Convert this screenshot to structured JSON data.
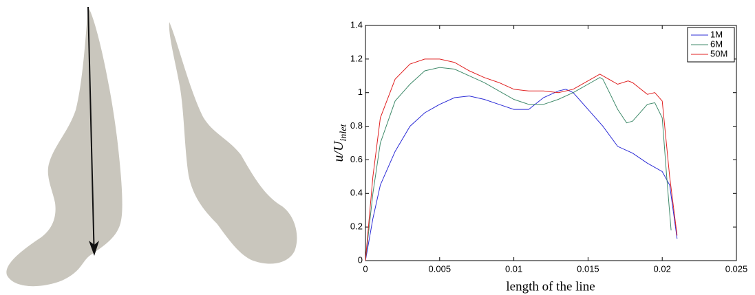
{
  "chart_data": {
    "type": "line",
    "xlabel": "length of the line",
    "ylabel": {
      "main": "u/U",
      "sub": "inlet"
    },
    "xlim": [
      0,
      0.025
    ],
    "ylim": [
      0,
      1.4
    ],
    "xticks": [
      0,
      0.005,
      0.01,
      0.015,
      0.02,
      0.025
    ],
    "yticks": [
      0,
      0.2,
      0.4,
      0.6,
      0.8,
      1,
      1.2,
      1.4
    ],
    "legend": "top-right",
    "series": [
      {
        "name": "1M",
        "color": "#2b2bd6",
        "x": [
          0,
          0.0005,
          0.001,
          0.002,
          0.003,
          0.004,
          0.005,
          0.006,
          0.007,
          0.008,
          0.009,
          0.01,
          0.011,
          0.012,
          0.013,
          0.0135,
          0.014,
          0.015,
          0.016,
          0.017,
          0.018,
          0.019,
          0.02,
          0.0205,
          0.021
        ],
        "values": [
          0,
          0.25,
          0.45,
          0.65,
          0.8,
          0.88,
          0.93,
          0.97,
          0.98,
          0.96,
          0.93,
          0.9,
          0.9,
          0.97,
          1.01,
          1.02,
          1.0,
          0.9,
          0.8,
          0.68,
          0.64,
          0.58,
          0.53,
          0.45,
          0.13
        ]
      },
      {
        "name": "6M",
        "color": "#3f8a6a",
        "x": [
          0,
          0.0005,
          0.001,
          0.002,
          0.003,
          0.004,
          0.005,
          0.006,
          0.007,
          0.008,
          0.009,
          0.01,
          0.011,
          0.012,
          0.013,
          0.014,
          0.015,
          0.0158,
          0.016,
          0.017,
          0.0176,
          0.018,
          0.019,
          0.0195,
          0.02,
          0.0203,
          0.0206
        ],
        "values": [
          0,
          0.4,
          0.7,
          0.95,
          1.05,
          1.13,
          1.15,
          1.14,
          1.1,
          1.06,
          1.01,
          0.96,
          0.93,
          0.93,
          0.96,
          1.0,
          1.05,
          1.09,
          1.08,
          0.9,
          0.82,
          0.83,
          0.93,
          0.94,
          0.85,
          0.5,
          0.18
        ]
      },
      {
        "name": "50M",
        "color": "#e02020",
        "x": [
          0,
          0.0005,
          0.001,
          0.002,
          0.003,
          0.004,
          0.005,
          0.006,
          0.007,
          0.008,
          0.009,
          0.01,
          0.011,
          0.012,
          0.013,
          0.014,
          0.015,
          0.0158,
          0.016,
          0.017,
          0.0177,
          0.018,
          0.019,
          0.0195,
          0.02,
          0.0205,
          0.021
        ],
        "values": [
          0,
          0.5,
          0.85,
          1.08,
          1.17,
          1.2,
          1.2,
          1.18,
          1.13,
          1.09,
          1.06,
          1.02,
          1.01,
          1.01,
          1.0,
          1.02,
          1.07,
          1.11,
          1.1,
          1.05,
          1.07,
          1.06,
          0.99,
          1.0,
          0.95,
          0.5,
          0.15
        ]
      }
    ]
  }
}
